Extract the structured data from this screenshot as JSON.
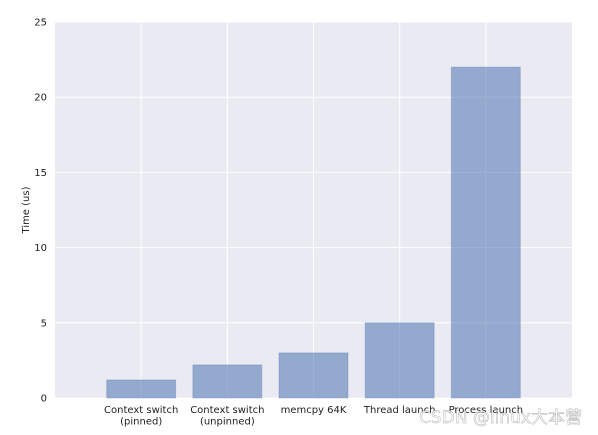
{
  "chart_data": {
    "type": "bar",
    "ylabel": "Time (us)",
    "categories": [
      "Context switch\n(pinned)",
      "Context switch\n(unpinned)",
      "memcpy 64K",
      "Thread launch",
      "Process launch"
    ],
    "values": [
      1.2,
      2.2,
      3.0,
      5.0,
      22.0
    ],
    "color": "#4c72b0",
    "ylim": [
      0,
      25
    ],
    "yticks": [
      0,
      5,
      10,
      15,
      20,
      25
    ],
    "grid": true,
    "watermark": "CSDN @linux大本营"
  }
}
